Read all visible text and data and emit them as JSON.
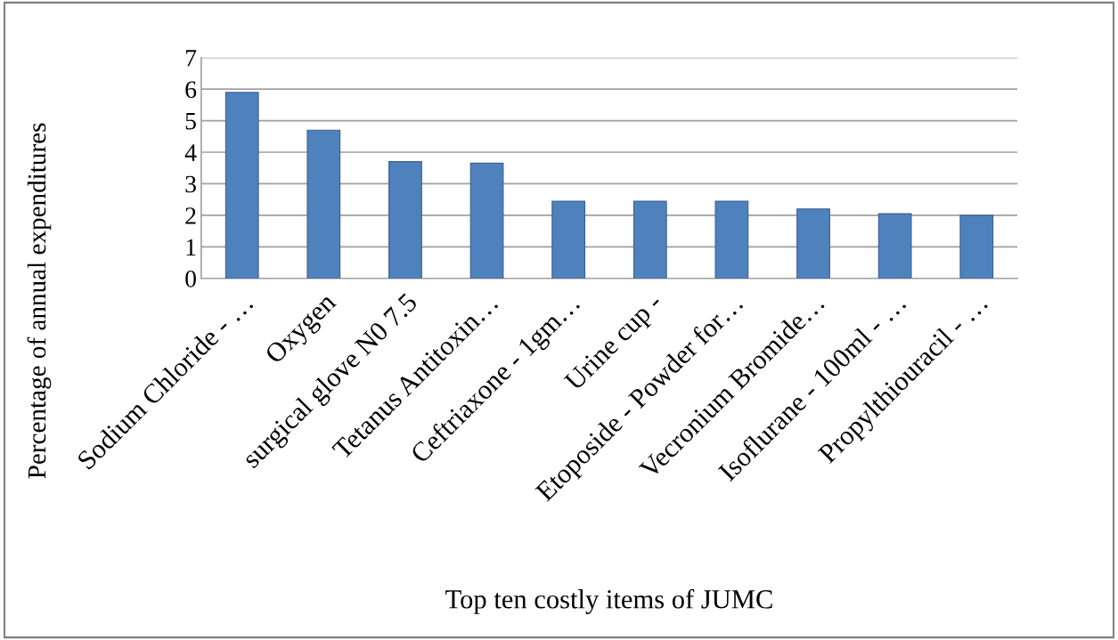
{
  "chart_data": {
    "type": "bar",
    "xlabel": "Top ten costly items of JUMC",
    "ylabel": "Percentage of annual expenditures",
    "categories": [
      "Sodium Chloride - …",
      "Oxygen",
      "surgical glove N0 7.5",
      "Tetanus Antitoxin…",
      "Ceftriaxone - 1gm…",
      "Urine cup -",
      "Etoposide - Powder for…",
      "Vecronium Bromide…",
      "Isoflurane - 100ml - …",
      "Propylthiouracil - …"
    ],
    "values": [
      5.9,
      4.7,
      3.7,
      3.65,
      2.45,
      2.45,
      2.45,
      2.2,
      2.05,
      2.0
    ],
    "color": "#4f81bd",
    "ylim": [
      0,
      7
    ],
    "yticks": [
      0,
      1,
      2,
      3,
      4,
      5,
      6,
      7
    ],
    "grid": "y",
    "legend": false
  }
}
